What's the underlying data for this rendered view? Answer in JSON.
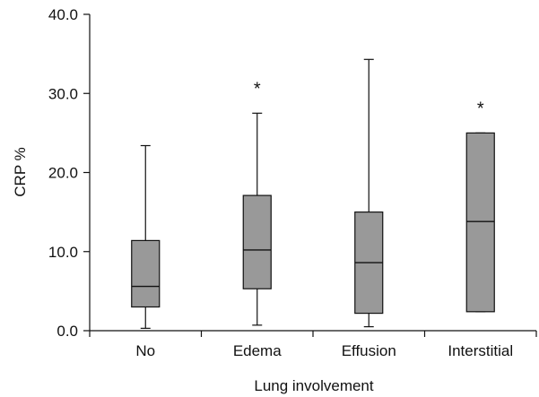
{
  "chart_data": {
    "type": "boxplot",
    "xlabel": "Lung involvement",
    "ylabel": "CRP %",
    "ylim": [
      0,
      40
    ],
    "yticks": [
      {
        "value": 0,
        "label": "0.0"
      },
      {
        "value": 10,
        "label": "10.0"
      },
      {
        "value": 20,
        "label": "20.0"
      },
      {
        "value": 30,
        "label": "30.0"
      },
      {
        "value": 40,
        "label": "40.0"
      }
    ],
    "categories": [
      "No",
      "Edema",
      "Effusion",
      "Interstitial"
    ],
    "boxes": [
      {
        "category": "No",
        "min": 0.3,
        "q1": 3.0,
        "median": 5.6,
        "q3": 11.4,
        "max": 23.4,
        "marker": ""
      },
      {
        "category": "Edema",
        "min": 0.7,
        "q1": 5.3,
        "median": 10.2,
        "q3": 17.1,
        "max": 27.5,
        "marker": "*"
      },
      {
        "category": "Effusion",
        "min": 0.5,
        "q1": 2.2,
        "median": 8.6,
        "q3": 15.0,
        "max": 34.3,
        "marker": ""
      },
      {
        "category": "Interstitial",
        "min": 2.4,
        "q1": 2.4,
        "median": 13.8,
        "q3": 25.0,
        "max": 25.0,
        "marker": "*"
      }
    ],
    "box_fill": "#999999",
    "line_color": "#111111",
    "grid": false
  }
}
